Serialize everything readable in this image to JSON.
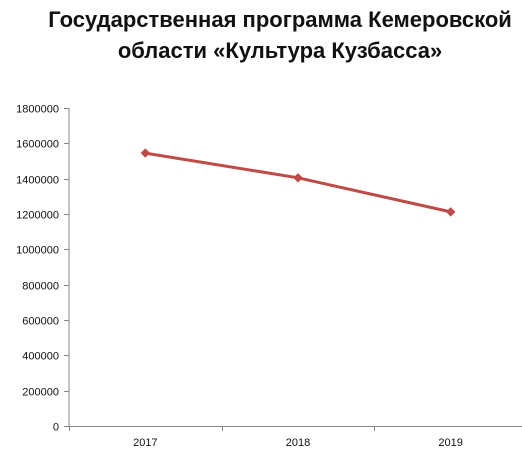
{
  "chart_data": {
    "type": "line",
    "title": "Государственная программа Кемеровской области «Культура Кузбасса»",
    "categories": [
      "2017",
      "2018",
      "2019"
    ],
    "series": [
      {
        "values": [
          1545000,
          1405000,
          1212000
        ]
      }
    ],
    "ylim": [
      0,
      1800000
    ],
    "yticks": [
      "0",
      "200000",
      "400000",
      "600000",
      "800000",
      "1000000",
      "1200000",
      "1400000",
      "1600000",
      "1800000"
    ],
    "grid": false,
    "legend": "none",
    "colors": {
      "line": "#BE4B48",
      "axis": "#868686"
    }
  }
}
